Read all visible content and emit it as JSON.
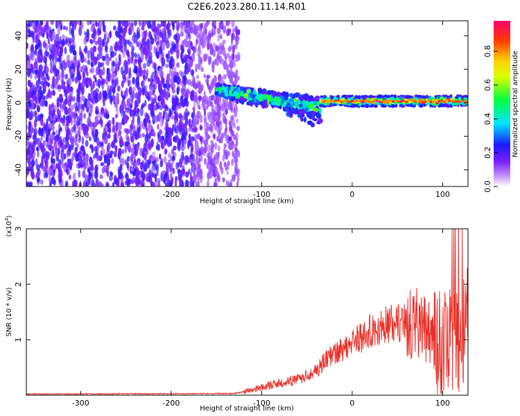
{
  "title": "C2E6.2023.280.11.14.R01",
  "chart_data": [
    {
      "type": "heatmap",
      "xlabel": "Height of straight line (km)",
      "ylabel": "Frequency (Hz)",
      "xlim": [
        -360,
        128
      ],
      "ylim": [
        -50,
        49
      ],
      "x_ticks": [
        -300,
        -200,
        -100,
        0,
        100
      ],
      "y_ticks": [
        -40,
        -20,
        0,
        20,
        40
      ],
      "colorbar": {
        "label": "Normalized spectral amplitude",
        "range": [
          0,
          0.98
        ],
        "ticks": [
          0.0,
          0.2,
          0.4,
          0.6,
          0.8
        ],
        "tick_labels": [
          "0.0",
          "0.2",
          "0.4",
          "0.6",
          "0.8"
        ]
      },
      "regions": [
        {
          "description": "scattered low-amplitude noise",
          "x_range": [
            -360,
            -130
          ],
          "y_range": [
            -50,
            49
          ],
          "amplitude": 0.15
        },
        {
          "description": "descending signal band",
          "x_range": [
            -150,
            -35
          ],
          "frequency_start": 8,
          "frequency_end": -3,
          "amplitude": 0.45
        },
        {
          "description": "steady signal band",
          "x_range": [
            -35,
            128
          ],
          "frequency": 1,
          "amplitude": 0.9
        }
      ]
    },
    {
      "type": "line",
      "xlabel": "Height of straight line (km)",
      "ylabel": "SNR (10 * v/v)",
      "y_exponent_label": "(x10",
      "y_exponent_sup": "4",
      "y_exponent_close": ")",
      "xlim": [
        -360,
        128
      ],
      "ylim": [
        0,
        3
      ],
      "x_ticks": [
        -300,
        -200,
        -100,
        0,
        100
      ],
      "y_ticks": [
        1,
        2,
        3
      ],
      "line_color": "#e8302a",
      "envelope": {
        "x": [
          -360,
          -130,
          -110,
          -80,
          -60,
          -40,
          -20,
          0,
          20,
          40,
          60,
          70,
          80,
          90,
          100,
          110,
          120,
          128
        ],
        "y": [
          0.02,
          0.03,
          0.1,
          0.22,
          0.28,
          0.45,
          0.75,
          0.95,
          1.15,
          1.28,
          1.33,
          1.3,
          1.2,
          1.05,
          0.95,
          0.95,
          1.0,
          1.2
        ]
      }
    }
  ]
}
